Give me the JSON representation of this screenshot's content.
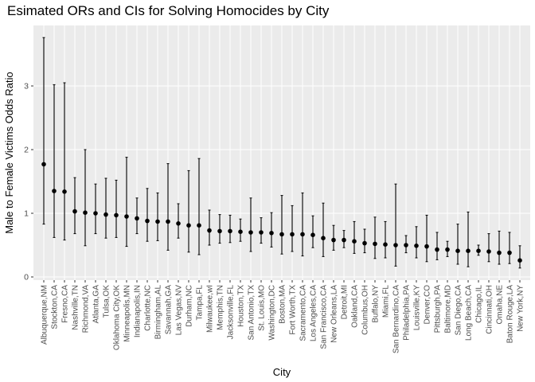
{
  "chart_data": {
    "type": "errorbar",
    "title": "Esimated ORs and CIs for Solving Homocides by City",
    "xlabel": "City",
    "ylabel": "Male to Female Victims Odds Ratio",
    "ylim": [
      -0.05,
      3.95
    ],
    "yticks": [
      0,
      1,
      2,
      3
    ],
    "grid": true,
    "legend": "none",
    "colors": {
      "panel": "#EBEBEB",
      "grid_major": "#FFFFFF",
      "grid_minor": "#F4F4F4",
      "point": "#000000",
      "tick_text": "#4D4D4D"
    },
    "points": [
      {
        "city": "Albuquerque,NM",
        "or": 1.77,
        "lo": 0.83,
        "hi": 3.76
      },
      {
        "city": "Stockton,CA",
        "or": 1.35,
        "lo": 0.62,
        "hi": 3.02
      },
      {
        "city": "Fresno,CA",
        "or": 1.34,
        "lo": 0.58,
        "hi": 3.05
      },
      {
        "city": "Nashville,TN",
        "or": 1.03,
        "lo": 0.68,
        "hi": 1.56
      },
      {
        "city": "Richmond,VA",
        "or": 1.01,
        "lo": 0.49,
        "hi": 2.0
      },
      {
        "city": "Atlanta,GA",
        "or": 1.0,
        "lo": 0.68,
        "hi": 1.46
      },
      {
        "city": "Tulsa,OK",
        "or": 0.98,
        "lo": 0.61,
        "hi": 1.55
      },
      {
        "city": "Oklahoma City,OK",
        "or": 0.97,
        "lo": 0.62,
        "hi": 1.52
      },
      {
        "city": "Minneapolis,MN",
        "or": 0.95,
        "lo": 0.48,
        "hi": 1.88
      },
      {
        "city": "Indianapolis,IN",
        "or": 0.92,
        "lo": 0.68,
        "hi": 1.24
      },
      {
        "city": "Charlotte,NC",
        "or": 0.88,
        "lo": 0.56,
        "hi": 1.39
      },
      {
        "city": "Birmingham,AL",
        "or": 0.87,
        "lo": 0.57,
        "hi": 1.32
      },
      {
        "city": "Savannah,GA",
        "or": 0.87,
        "lo": 0.42,
        "hi": 1.78
      },
      {
        "city": "Las Vegas,NV",
        "or": 0.84,
        "lo": 0.61,
        "hi": 1.15
      },
      {
        "city": "Durham,NC",
        "or": 0.81,
        "lo": 0.39,
        "hi": 1.67
      },
      {
        "city": "Tampa,FL",
        "or": 0.81,
        "lo": 0.35,
        "hi": 1.86
      },
      {
        "city": "Milwaukee,wI",
        "or": 0.73,
        "lo": 0.5,
        "hi": 1.05
      },
      {
        "city": "Memphis,TN",
        "or": 0.72,
        "lo": 0.53,
        "hi": 0.98
      },
      {
        "city": "Jacksonville,FL",
        "or": 0.72,
        "lo": 0.54,
        "hi": 0.97
      },
      {
        "city": "Houston,TX",
        "or": 0.71,
        "lo": 0.56,
        "hi": 0.91
      },
      {
        "city": "San Antonio,TX",
        "or": 0.7,
        "lo": 0.4,
        "hi": 1.24
      },
      {
        "city": "St. Louis,MO",
        "or": 0.7,
        "lo": 0.53,
        "hi": 0.93
      },
      {
        "city": "Washington,DC",
        "or": 0.69,
        "lo": 0.47,
        "hi": 1.01
      },
      {
        "city": "Boston,MA",
        "or": 0.67,
        "lo": 0.36,
        "hi": 1.28
      },
      {
        "city": "Fort Worth,TX",
        "or": 0.67,
        "lo": 0.4,
        "hi": 1.12
      },
      {
        "city": "Sacramento,CA",
        "or": 0.67,
        "lo": 0.33,
        "hi": 1.32
      },
      {
        "city": "Los Angeles,CA",
        "or": 0.66,
        "lo": 0.46,
        "hi": 0.96
      },
      {
        "city": "San Francisco,CA",
        "or": 0.61,
        "lo": 0.32,
        "hi": 1.16
      },
      {
        "city": "New Orleans,LA",
        "or": 0.58,
        "lo": 0.42,
        "hi": 0.81
      },
      {
        "city": "Detroit,MI",
        "or": 0.58,
        "lo": 0.46,
        "hi": 0.73
      },
      {
        "city": "Oakland,CA",
        "or": 0.56,
        "lo": 0.37,
        "hi": 0.87
      },
      {
        "city": "Columbus,OH",
        "or": 0.53,
        "lo": 0.38,
        "hi": 0.75
      },
      {
        "city": "Buffalo,NY",
        "or": 0.52,
        "lo": 0.29,
        "hi": 0.94
      },
      {
        "city": "Miami,FL",
        "or": 0.51,
        "lo": 0.3,
        "hi": 0.87
      },
      {
        "city": "San Bernardino,CA",
        "or": 0.5,
        "lo": 0.17,
        "hi": 1.46
      },
      {
        "city": "Philadelphia,PA",
        "or": 0.5,
        "lo": 0.38,
        "hi": 0.65
      },
      {
        "city": "Louisville,KY",
        "or": 0.49,
        "lo": 0.3,
        "hi": 0.79
      },
      {
        "city": "Denver,CO",
        "or": 0.48,
        "lo": 0.24,
        "hi": 0.97
      },
      {
        "city": "Pittsburgh,PA",
        "or": 0.43,
        "lo": 0.27,
        "hi": 0.7
      },
      {
        "city": "Baltimore,MD",
        "or": 0.43,
        "lo": 0.32,
        "hi": 0.56
      },
      {
        "city": "San Diego,CA",
        "or": 0.41,
        "lo": 0.2,
        "hi": 0.83
      },
      {
        "city": "Long Beach,CA",
        "or": 0.41,
        "lo": 0.16,
        "hi": 1.02
      },
      {
        "city": "Chicago,IL",
        "or": 0.41,
        "lo": 0.34,
        "hi": 0.5
      },
      {
        "city": "Cincinnati,OH",
        "or": 0.4,
        "lo": 0.24,
        "hi": 0.68
      },
      {
        "city": "Omaha,NE",
        "or": 0.38,
        "lo": 0.2,
        "hi": 0.72
      },
      {
        "city": "Baton Rouge,LA",
        "or": 0.38,
        "lo": 0.21,
        "hi": 0.7
      },
      {
        "city": "New York,NY",
        "or": 0.26,
        "lo": 0.14,
        "hi": 0.49
      }
    ]
  }
}
